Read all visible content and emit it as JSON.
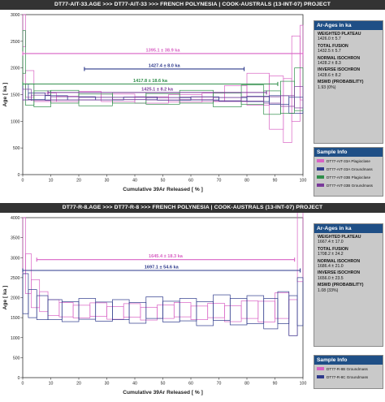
{
  "top": {
    "header": "DT77-AIT-33.AGE   >>>   DT77-AIT-33   >>>   FRENCH POLYNESIA | COOK-AUSTRALS (13-INT-07) PROJECT",
    "ages_title": "Ar-Ages in ka",
    "ages": [
      {
        "label": "WEIGHTED PLATEAU",
        "value": "1426.0 ± 5.7"
      },
      {
        "label": "TOTAL FUSION",
        "value": "1432.5 ± 5.7"
      },
      {
        "label": "NORMAL ISOCHRON",
        "value": "1428.2 ± 8.3"
      },
      {
        "label": "INVERSE ISOCHRON",
        "value": "1428.6 ± 8.2"
      },
      {
        "label": "MSWD (PROBABILITY)",
        "value": "1.93 (0%)"
      }
    ],
    "sample_title": "Sample Info",
    "samples": [
      {
        "label": "DT77-AIT-33A Plagioclase",
        "color": "#d862c4"
      },
      {
        "label": "DT77-AIT-33A Groundmass",
        "color": "#2e3a8c"
      },
      {
        "label": "DT77-AIT-33B Plagioclase",
        "color": "#2f8e4a"
      },
      {
        "label": "DT77-AIT-33B Groundmass",
        "color": "#7a3a9a"
      }
    ]
  },
  "bottom": {
    "header": "DT77-R-8.AGE   >>>   DT77-R-8   >>>   FRENCH POLYNESIA | COOK-AUSTRALS (13-INT-07) PROJECT",
    "ages_title": "Ar-Ages in ka",
    "ages": [
      {
        "label": "WEIGHTED PLATEAU",
        "value": "1667.4 ± 17.0"
      },
      {
        "label": "TOTAL FUSION",
        "value": "1708.2 ± 24.2"
      },
      {
        "label": "NORMAL ISOCHRON",
        "value": "1686.4 ± 21.0"
      },
      {
        "label": "INVERSE ISOCHRON",
        "value": "1656.0 ± 23.5"
      },
      {
        "label": "MSWD (PROBABILITY)",
        "value": "1.08 (33%)"
      }
    ],
    "sample_title": "Sample Info",
    "samples": [
      {
        "label": "DT77-R-8B Groundmass",
        "color": "#d862c4"
      },
      {
        "label": "DT77-R-8C Groundmass",
        "color": "#2e3a8c"
      }
    ]
  },
  "chart_data": [
    {
      "type": "line",
      "xlabel": "Cumulative 39Ar Released [ % ]",
      "ylabel": "Age [ ka ]",
      "xlim": [
        0,
        100
      ],
      "ylim": [
        0,
        3000
      ],
      "xticks": [
        0,
        10,
        20,
        30,
        40,
        50,
        60,
        70,
        80,
        90,
        100
      ],
      "yticks": [
        0,
        500,
        1000,
        1500,
        2000,
        2500,
        3000
      ],
      "grid": false,
      "bars": [
        {
          "label": "1395.1 ± 38.9 ka",
          "value": 1395.1,
          "error": 38.9,
          "x0": 0,
          "x1": 100,
          "y": 2270,
          "color": "#d862c4"
        },
        {
          "label": "1427.4 ± 8.0 ka",
          "value": 1427.4,
          "error": 8.0,
          "x0": 22,
          "x1": 79,
          "y": 1980,
          "color": "#2e3a8c"
        },
        {
          "label": "1417.8 ± 18.6 ka",
          "value": 1417.8,
          "error": 18.6,
          "x0": 0,
          "x1": 91,
          "y": 1700,
          "color": "#2f8e4a"
        },
        {
          "label": "1425.1 ± 8.2 ka",
          "value": 1425.1,
          "error": 8.2,
          "x0": 9,
          "x1": 87,
          "y": 1540,
          "color": "#7a3a9a"
        }
      ],
      "series": [
        {
          "name": "DT77-AIT-33A Plagioclase",
          "color": "#d862c4",
          "steps": [
            [
              0,
              1,
              2700,
              300
            ],
            [
              1,
              4,
              1700,
              250
            ],
            [
              4,
              12,
              1450,
              80
            ],
            [
              12,
              20,
              1420,
              50
            ],
            [
              20,
              28,
              1480,
              80
            ],
            [
              28,
              40,
              1440,
              70
            ],
            [
              40,
              52,
              1400,
              60
            ],
            [
              52,
              64,
              1430,
              70
            ],
            [
              64,
              72,
              1450,
              80
            ],
            [
              72,
              80,
              1520,
              150
            ],
            [
              80,
              88,
              1600,
              300
            ],
            [
              88,
              93,
              1350,
              500
            ],
            [
              93,
              96,
              1200,
              600
            ],
            [
              96,
              99,
              1800,
              800
            ],
            [
              99,
              100,
              2100,
              700
            ]
          ]
        },
        {
          "name": "DT77-AIT-33A Groundmass",
          "color": "#2e3a8c",
          "steps": [
            [
              0,
              2,
              1550,
              150
            ],
            [
              2,
              8,
              1470,
              60
            ],
            [
              8,
              16,
              1440,
              40
            ],
            [
              16,
              26,
              1430,
              30
            ],
            [
              26,
              36,
              1425,
              25
            ],
            [
              36,
              48,
              1430,
              25
            ],
            [
              48,
              60,
              1420,
              25
            ],
            [
              60,
              70,
              1430,
              30
            ],
            [
              70,
              80,
              1410,
              35
            ],
            [
              80,
              88,
              1420,
              50
            ],
            [
              88,
              95,
              1400,
              80
            ],
            [
              95,
              100,
              1300,
              150
            ]
          ]
        },
        {
          "name": "DT77-AIT-33B Plagioclase",
          "color": "#2f8e4a",
          "steps": [
            [
              0,
              1,
              2300,
              400
            ],
            [
              1,
              4,
              1500,
              200
            ],
            [
              4,
              10,
              1420,
              150
            ],
            [
              10,
              20,
              1460,
              120
            ],
            [
              20,
              32,
              1400,
              110
            ],
            [
              32,
              44,
              1440,
              100
            ],
            [
              44,
              56,
              1420,
              100
            ],
            [
              56,
              68,
              1460,
              120
            ],
            [
              68,
              78,
              1400,
              130
            ],
            [
              78,
              86,
              1500,
              180
            ],
            [
              86,
              92,
              1350,
              220
            ],
            [
              92,
              97,
              1450,
              300
            ],
            [
              97,
              100,
              1600,
              400
            ]
          ]
        },
        {
          "name": "DT77-AIT-33B Groundmass",
          "color": "#7a3a9a",
          "steps": [
            [
              0,
              3,
              1500,
              100
            ],
            [
              3,
              10,
              1440,
              50
            ],
            [
              10,
              20,
              1430,
              30
            ],
            [
              20,
              32,
              1425,
              25
            ],
            [
              32,
              44,
              1428,
              22
            ],
            [
              44,
              56,
              1422,
              22
            ],
            [
              56,
              68,
              1430,
              25
            ],
            [
              68,
              78,
              1415,
              30
            ],
            [
              78,
              86,
              1420,
              40
            ],
            [
              86,
              92,
              1400,
              60
            ],
            [
              92,
              97,
              1380,
              100
            ],
            [
              97,
              100,
              1450,
              200
            ]
          ]
        }
      ]
    },
    {
      "type": "line",
      "xlabel": "Cumulative 39Ar Released [ % ]",
      "ylabel": "Age [ ka ]",
      "xlim": [
        0,
        100
      ],
      "ylim": [
        0,
        4000
      ],
      "xticks": [
        0,
        10,
        20,
        30,
        40,
        50,
        60,
        70,
        80,
        90,
        100
      ],
      "yticks": [
        0,
        500,
        1000,
        1500,
        2000,
        2500,
        3000,
        3500,
        4000
      ],
      "grid": false,
      "bars": [
        {
          "label": "1645.4 ± 18.3 ka",
          "value": 1645.4,
          "error": 18.3,
          "x0": 5,
          "x1": 97,
          "y": 2950,
          "color": "#d862c4"
        },
        {
          "label": "1697.1 ± 54.6 ka",
          "value": 1697.1,
          "error": 54.6,
          "x0": 0,
          "x1": 99,
          "y": 2680,
          "color": "#2e3a8c"
        }
      ],
      "series": [
        {
          "name": "DT77-R-8B Groundmass",
          "color": "#d862c4",
          "steps": [
            [
              0,
              1,
              3300,
              700
            ],
            [
              1,
              3,
              2600,
              500
            ],
            [
              3,
              6,
              2100,
              350
            ],
            [
              6,
              9,
              1900,
              250
            ],
            [
              9,
              13,
              1750,
              200
            ],
            [
              13,
              18,
              1700,
              180
            ],
            [
              18,
              24,
              1650,
              160
            ],
            [
              24,
              30,
              1700,
              170
            ],
            [
              30,
              36,
              1620,
              160
            ],
            [
              36,
              42,
              1680,
              170
            ],
            [
              42,
              48,
              1600,
              160
            ],
            [
              48,
              54,
              1650,
              170
            ],
            [
              54,
              60,
              1700,
              180
            ],
            [
              60,
              66,
              1620,
              170
            ],
            [
              66,
              72,
              1680,
              180
            ],
            [
              72,
              78,
              1600,
              200
            ],
            [
              78,
              84,
              1700,
              220
            ],
            [
              84,
              90,
              1650,
              260
            ],
            [
              90,
              95,
              1800,
              320
            ],
            [
              95,
              98,
              1500,
              450
            ],
            [
              98,
              100,
              3300,
              900
            ]
          ]
        },
        {
          "name": "DT77-R-8C Groundmass",
          "color": "#2e3a8c",
          "steps": [
            [
              0,
              2,
              2100,
              500
            ],
            [
              2,
              5,
              1850,
              350
            ],
            [
              5,
              9,
              1750,
              300
            ],
            [
              9,
              14,
              1700,
              250
            ],
            [
              14,
              20,
              1650,
              250
            ],
            [
              20,
              26,
              1720,
              260
            ],
            [
              26,
              32,
              1650,
              240
            ],
            [
              32,
              38,
              1700,
              250
            ],
            [
              38,
              44,
              1620,
              260
            ],
            [
              44,
              50,
              1750,
              270
            ],
            [
              50,
              56,
              1650,
              260
            ],
            [
              56,
              62,
              1700,
              280
            ],
            [
              62,
              68,
              1600,
              300
            ],
            [
              68,
              74,
              1750,
              320
            ],
            [
              74,
              80,
              1650,
              330
            ],
            [
              80,
              86,
              1700,
              350
            ],
            [
              86,
              91,
              1600,
              380
            ],
            [
              91,
              95,
              1750,
              400
            ],
            [
              95,
              98,
              1550,
              500
            ],
            [
              98,
              100,
              1900,
              600
            ]
          ]
        }
      ]
    }
  ]
}
